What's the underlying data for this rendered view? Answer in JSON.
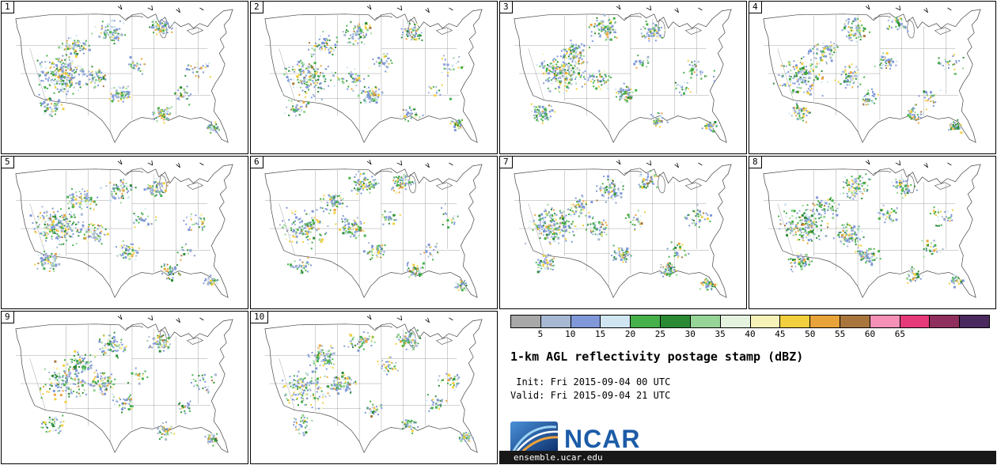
{
  "panels": [
    {
      "label": "1"
    },
    {
      "label": "2"
    },
    {
      "label": "3"
    },
    {
      "label": "4"
    },
    {
      "label": "5"
    },
    {
      "label": "6"
    },
    {
      "label": "7"
    },
    {
      "label": "8"
    },
    {
      "label": "9"
    },
    {
      "label": "10"
    }
  ],
  "colorbar": {
    "tick_labels": [
      "5",
      "10",
      "15",
      "20",
      "25",
      "30",
      "35",
      "40",
      "45",
      "50",
      "55",
      "60",
      "65"
    ],
    "segment_colors": [
      "#a8a8a8",
      "#a6b8d2",
      "#8098d8",
      "#cfe6f2",
      "#46b04b",
      "#2a8a34",
      "#97d497",
      "#e6f2e0",
      "#f7f2b8",
      "#f2cf3e",
      "#e9a33b",
      "#a8763d",
      "#f590b6",
      "#e63b7a",
      "#8f2f5e",
      "#4a2a5e"
    ]
  },
  "info": {
    "title": "1-km AGL reflectivity postage stamp (dBZ)",
    "init": " Init: Fri 2015-09-04 00 UTC",
    "valid": "Valid: Fri 2015-09-04 21 UTC"
  },
  "logo": {
    "text": "NCAR",
    "color": "#1d5ca8"
  },
  "footer": {
    "text": "ensemble.ucar.edu"
  }
}
